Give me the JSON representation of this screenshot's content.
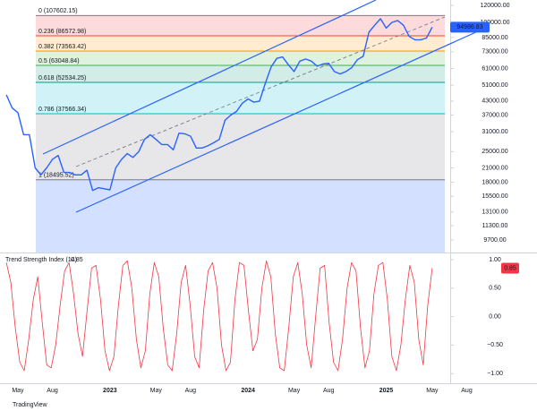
{
  "chart_data": [
    {
      "type": "line",
      "log_scale": true,
      "categories": [
        null,
        null,
        "May",
        null,
        null,
        null,
        null,
        null,
        "Aug",
        null,
        null,
        null,
        null,
        null,
        null,
        null,
        null,
        null,
        "2023",
        null,
        null,
        null,
        null,
        null,
        null,
        null,
        "May",
        null,
        null,
        null,
        null,
        null,
        "Aug",
        null,
        null,
        null,
        null,
        null,
        null,
        null,
        null,
        null,
        "2024",
        null,
        null,
        null,
        null,
        null,
        null,
        null,
        "May",
        null,
        null,
        null,
        null,
        null,
        "Aug",
        null,
        null,
        null,
        null,
        null,
        null,
        null,
        null,
        null,
        "2025",
        null,
        null,
        null,
        null,
        null,
        null,
        null,
        "May",
        null,
        null,
        null,
        null,
        null,
        "Aug",
        null,
        null,
        null
      ],
      "series": [
        {
          "color": "#2962ff",
          "values": [
            46000,
            40000,
            38000,
            30000,
            30000,
            21000,
            19500,
            21000,
            23000,
            24000,
            20000,
            20000,
            19500,
            19500,
            20500,
            16500,
            17000,
            16800,
            16600,
            21000,
            23000,
            24500,
            23500,
            25000,
            28500,
            30000,
            28500,
            27000,
            27000,
            25500,
            30500,
            30300,
            29500,
            26000,
            26000,
            26600,
            27500,
            28500,
            35000,
            37000,
            38500,
            42000,
            44000,
            42500,
            43000,
            52000,
            62000,
            68000,
            69000,
            63500,
            59000,
            66000,
            67500,
            66000,
            62500,
            64000,
            64500,
            59000,
            57500,
            59000,
            61500,
            67000,
            69500,
            90000,
            97000,
            104000,
            94000,
            100000,
            102000,
            97000,
            86000,
            83000,
            83000,
            84500,
            94986.83,
            null,
            null,
            null,
            null,
            null,
            null,
            null,
            null,
            null
          ]
        }
      ],
      "ylim": [
        8480,
        127100
      ],
      "yticks": [
        {
          "value": 120000,
          "label": "120000.00"
        },
        {
          "value": 100000,
          "label": "100000.00"
        },
        {
          "value": 85000,
          "label": "85000.00"
        },
        {
          "value": 73000,
          "label": "73000.00"
        },
        {
          "value": 61000,
          "label": "61000.00"
        },
        {
          "value": 51000,
          "label": "51000.00"
        },
        {
          "value": 43000,
          "label": "43000.00"
        },
        {
          "value": 37000,
          "label": "37000.00"
        },
        {
          "value": 31000,
          "label": "31000.00"
        },
        {
          "value": 25000,
          "label": "25000.00"
        },
        {
          "value": 21000,
          "label": "21000.00"
        },
        {
          "value": 18000,
          "label": "18000.00"
        },
        {
          "value": 15500,
          "label": "15500.00"
        },
        {
          "value": 13100,
          "label": "13100.00"
        },
        {
          "value": 11300,
          "label": "11300.00"
        },
        {
          "value": 9700,
          "label": "9700.00"
        }
      ],
      "last_price": {
        "value": 94986.83,
        "label": "94986.83"
      },
      "fib_levels": [
        {
          "label": "0 (107602.15)",
          "value": 107602.15,
          "color": "#787b86"
        },
        {
          "label": "0.236 (86572.98)",
          "value": 86572.98,
          "color": "#f23645"
        },
        {
          "label": "0.382 (73563.42)",
          "value": 73563.42,
          "color": "#ff9800"
        },
        {
          "label": "0.5 (63048.84)",
          "value": 63048.84,
          "color": "#4caf50"
        },
        {
          "label": "0.618 (52534.25)",
          "value": 52534.25,
          "color": "#089981"
        },
        {
          "label": "0.786 (37566.34)",
          "value": 37566.34,
          "color": "#00bcd4"
        },
        {
          "label": "1 (18495.52)",
          "value": 18495.52,
          "color": "#787b86"
        }
      ]
    },
    {
      "type": "line",
      "title": "Trend Strength Index (14)",
      "series": [
        {
          "color": "#f23645",
          "values": [
            0.95,
            0.6,
            -0.2,
            -0.8,
            -0.95,
            -0.4,
            0.3,
            0.7,
            -0.1,
            -0.85,
            -0.9,
            -0.5,
            0.2,
            0.8,
            0.95,
            0.4,
            -0.3,
            -0.7,
            0.1,
            0.85,
            0.9,
            0.3,
            -0.6,
            -0.95,
            -0.7,
            0.2,
            0.9,
            0.98,
            0.5,
            -0.4,
            -0.9,
            -0.6,
            0.4,
            0.95,
            0.7,
            -0.2,
            -0.85,
            -0.95,
            -0.3,
            0.6,
            0.9,
            0.2,
            -0.7,
            -0.9,
            0.1,
            0.8,
            0.95,
            0.5,
            -0.5,
            -0.95,
            -0.8,
            0.3,
            0.95,
            0.9,
            0.1,
            -0.6,
            -0.4,
            0.5,
            0.98,
            0.7,
            -0.3,
            -0.9,
            -0.95,
            -0.2,
            0.7,
            0.95,
            0.4,
            -0.5,
            -0.9,
            0.0,
            0.85,
            0.9,
            -0.1,
            -0.8,
            -0.95,
            -0.4,
            0.5,
            0.95,
            0.8,
            -0.2,
            -0.9,
            -0.6,
            0.4,
            0.9,
            0.95,
            0.3,
            -0.7,
            -0.95,
            -0.5,
            0.3,
            0.9,
            0.6,
            -0.4,
            -0.85,
            0.2,
            0.85
          ]
        }
      ],
      "ylim": [
        -1.17,
        1.11
      ],
      "yticks": [
        {
          "value": 1,
          "label": "1.00"
        },
        {
          "value": 0.5,
          "label": "0.50"
        },
        {
          "value": 0,
          "label": "0.00"
        },
        {
          "value": -0.5,
          "label": "−0.50"
        },
        {
          "value": -1,
          "label": "−1.00"
        }
      ]
    }
  ],
  "branding": "TradingView"
}
